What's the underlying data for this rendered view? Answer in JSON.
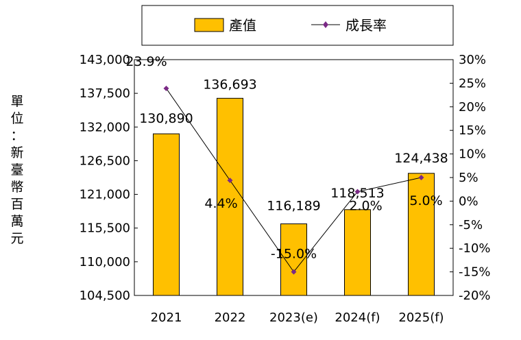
{
  "chart_data": {
    "type": "bar",
    "categories": [
      "2021",
      "2022",
      "2023(e)",
      "2024(f)",
      "2025(f)"
    ],
    "series": [
      {
        "name": "產值",
        "type": "bar",
        "axis": "left",
        "values": [
          130890,
          136693,
          116189,
          118513,
          124438
        ],
        "labels": [
          "130,890",
          "136,693",
          "116,189",
          "118,513",
          "124,438"
        ]
      },
      {
        "name": "成長率",
        "type": "line",
        "axis": "right",
        "values": [
          23.9,
          4.4,
          -15.0,
          2.0,
          5.0
        ],
        "labels": [
          "23.9%",
          "4.4%",
          "-15.0%",
          "2.0%",
          "5.0%"
        ]
      }
    ],
    "ylabel": "單位：新臺幣百萬元",
    "ylim": [
      104500,
      143000
    ],
    "yticks": [
      "143,000",
      "137,500",
      "132,000",
      "126,500",
      "121,000",
      "115,500",
      "110,000",
      "104,500"
    ],
    "y2lim": [
      -20,
      30
    ],
    "y2ticks": [
      "30%",
      "25%",
      "20%",
      "15%",
      "10%",
      "5%",
      "0%",
      "-5%",
      "-10%",
      "-15%",
      "-20%"
    ],
    "legend_position": "top",
    "grid": false,
    "colors": {
      "bar": "#FFC000",
      "bar_stroke": "#000000",
      "line": "#000000",
      "marker": "#7B2A86"
    }
  }
}
